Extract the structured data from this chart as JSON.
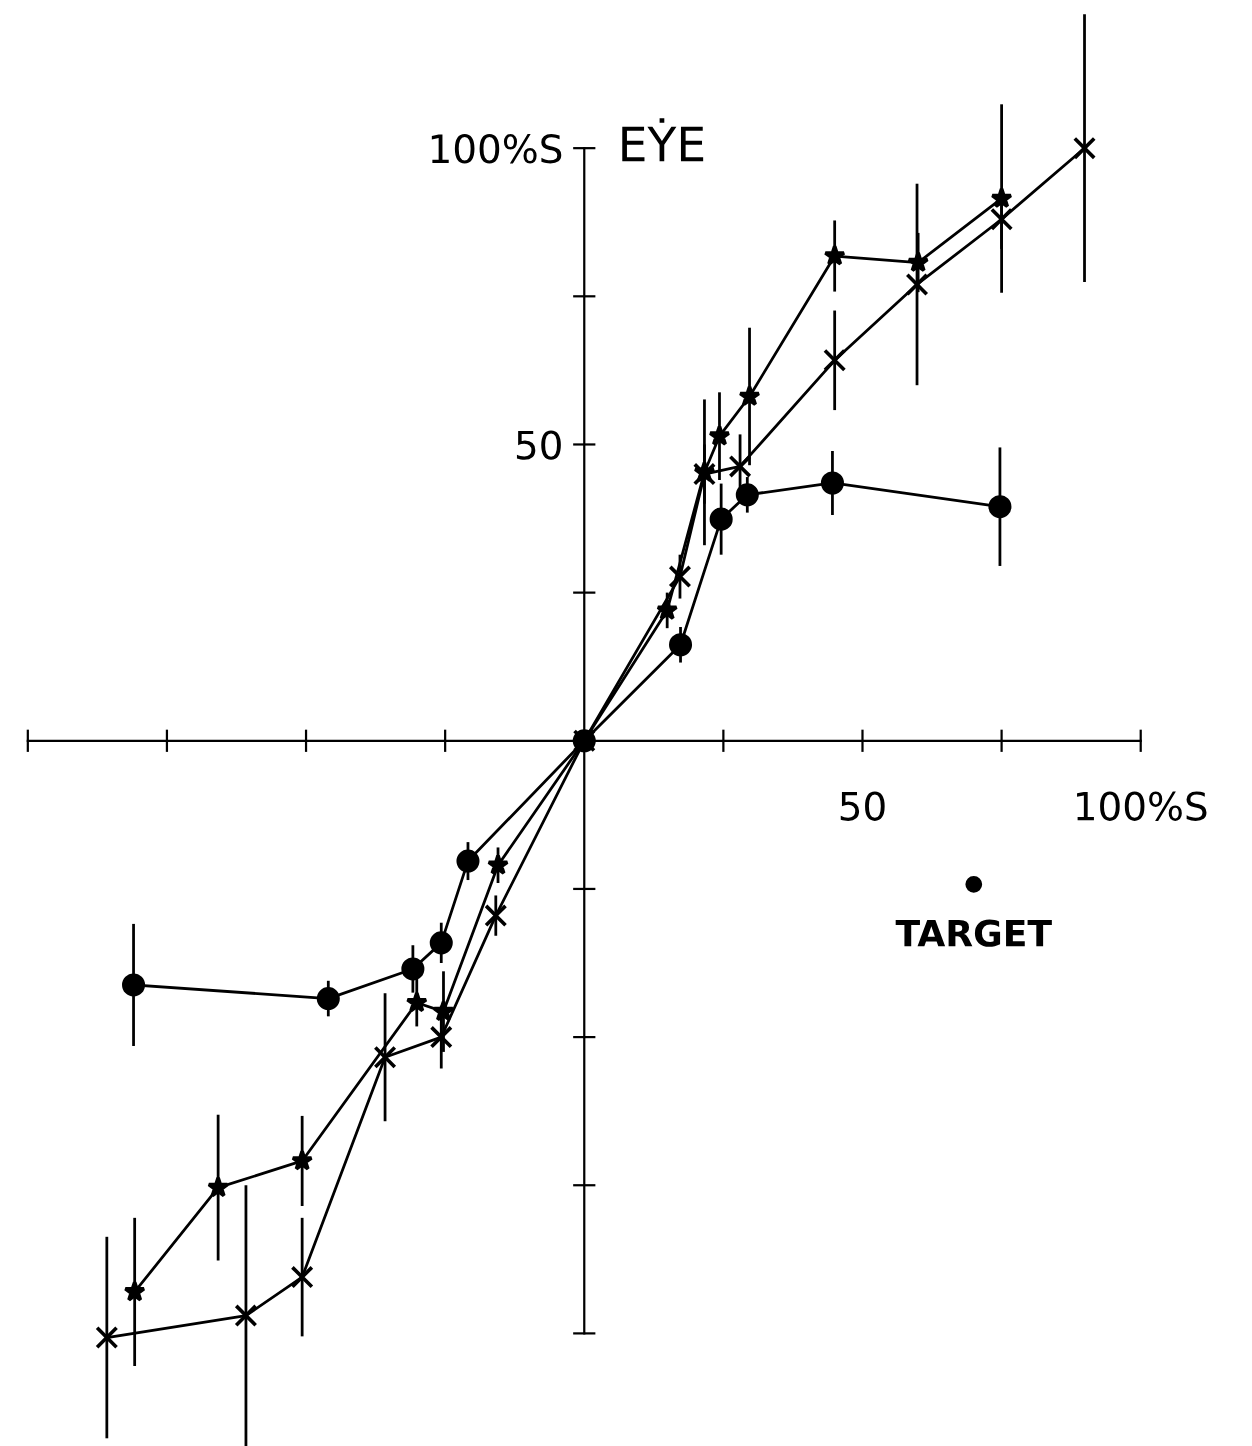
{
  "chart_data": {
    "type": "line",
    "xlabel": "TARGET",
    "ylabel": "EẎE",
    "xlim": [
      -105,
      120
    ],
    "ylim": [
      -119,
      125
    ],
    "xticks": [
      {
        "value": -100,
        "label": null
      },
      {
        "value": -75,
        "label": null
      },
      {
        "value": -50,
        "label": null
      },
      {
        "value": -25,
        "label": null
      },
      {
        "value": 25,
        "label": null
      },
      50,
      {
        "value": 75,
        "label": null
      },
      {
        "value": 100,
        "label": "100%S"
      }
    ],
    "yticks": [
      {
        "value": -100,
        "label": null
      },
      {
        "value": -75,
        "label": null
      },
      {
        "value": -50,
        "label": null
      },
      {
        "value": -25,
        "label": null
      },
      {
        "value": 25,
        "label": null
      },
      50,
      {
        "value": 75,
        "label": null
      },
      {
        "value": 100,
        "label": "100%S"
      }
    ],
    "grid": false,
    "legend": false,
    "line_style": "solid",
    "series": [
      {
        "color": "#000000",
        "marker": "circle",
        "x": [
          -81,
          -46,
          -30.8,
          -25.7,
          -20.9,
          0,
          17.3,
          24.6,
          29.3,
          44.6,
          74.7
        ],
        "values": [
          -41.2,
          -43.5,
          -38.5,
          -34.1,
          -20.3,
          0,
          16.2,
          37.4,
          41.5,
          43.5,
          39.5
        ],
        "errors": [
          10.3,
          3,
          4,
          3.4,
          3.2,
          null,
          3,
          6,
          3,
          5.4,
          10
        ]
      },
      {
        "color": "#000000",
        "marker": "star",
        "x": [
          -80.8,
          -65.8,
          -50.7,
          -30.1,
          -25.3,
          -15.5,
          0,
          14.9,
          21.6,
          24.3,
          29.7,
          45,
          60,
          75
        ],
        "values": [
          -93,
          -75.4,
          -70.9,
          -44.2,
          -45.7,
          -21,
          0,
          22,
          45.3,
          51.4,
          58.1,
          81.8,
          80.7,
          91.5
        ],
        "errors": [
          12.5,
          12.3,
          7.6,
          4,
          6.8,
          3,
          null,
          3,
          12.3,
          7.4,
          11.6,
          6,
          5,
          15.9
        ]
      },
      {
        "color": "#000000",
        "marker": "cross",
        "x": [
          -85.8,
          -60.8,
          -50.7,
          -35.8,
          -25.7,
          -15.9,
          0,
          17.2,
          21.6,
          28,
          45,
          59.8,
          75,
          89.9
        ],
        "values": [
          -100.7,
          -97,
          -90.5,
          -53.4,
          -50,
          -29.5,
          0,
          27.7,
          45,
          46.3,
          64.2,
          77,
          88,
          100
        ],
        "errors": [
          17,
          22,
          10,
          10.8,
          5.3,
          3.4,
          null,
          3.7,
          5,
          5.4,
          8.4,
          17,
          5,
          22.6
        ]
      }
    ]
  }
}
